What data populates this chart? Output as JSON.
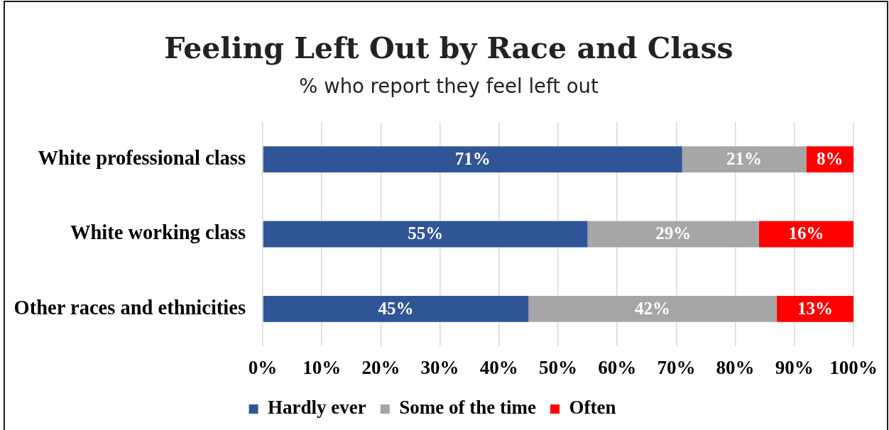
{
  "chart_data": {
    "type": "bar",
    "title": "Feeling Left Out by Race and Class",
    "subtitle": "% who report they feel left out",
    "orientation": "horizontal",
    "stacked": true,
    "categories": [
      "White professional class",
      "White working class",
      "Other races and ethnicities"
    ],
    "series": [
      {
        "name": "Hardly ever",
        "color": "#2f5597",
        "values": [
          71,
          55,
          45
        ],
        "value_labels": [
          "71%",
          "55%",
          "45%"
        ]
      },
      {
        "name": "Some of the time",
        "color": "#a6a6a6",
        "values": [
          21,
          29,
          42
        ],
        "value_labels": [
          "21%",
          "29%",
          "42%"
        ]
      },
      {
        "name": "Often",
        "color": "#ff0000",
        "values": [
          8,
          16,
          13
        ],
        "value_labels": [
          "8%",
          "16%",
          "13%"
        ]
      }
    ],
    "xlim": [
      0,
      100
    ],
    "xticks": [
      {
        "value": 0,
        "label": "0%"
      },
      {
        "value": 10,
        "label": "10%"
      },
      {
        "value": 20,
        "label": "20%"
      },
      {
        "value": 30,
        "label": "30%"
      },
      {
        "value": 40,
        "label": "40%"
      },
      {
        "value": 50,
        "label": "50%"
      },
      {
        "value": 60,
        "label": "60%"
      },
      {
        "value": 70,
        "label": "70%"
      },
      {
        "value": 80,
        "label": "80%"
      },
      {
        "value": 90,
        "label": "90%"
      },
      {
        "value": 100,
        "label": "100%"
      }
    ],
    "grid": "x",
    "legend": "bottom"
  }
}
